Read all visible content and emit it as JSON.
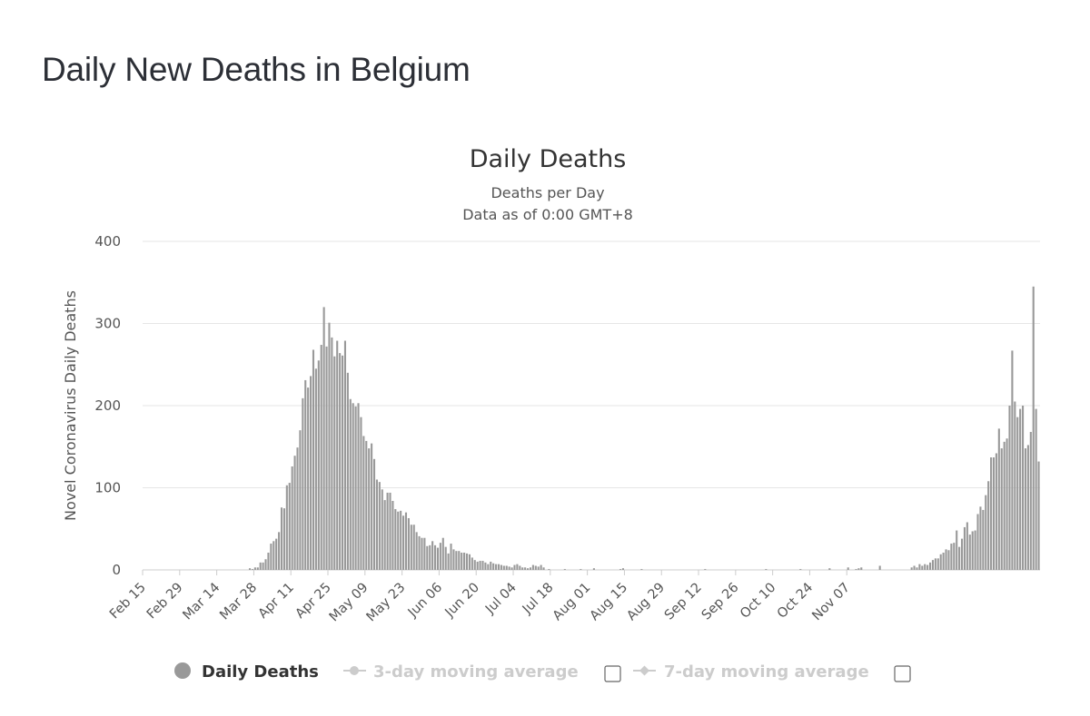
{
  "page": {
    "heading": "Daily New Deaths in Belgium"
  },
  "chart_data": {
    "type": "bar",
    "title": "Daily Deaths",
    "subtitle": [
      "Deaths per Day",
      "Data as of 0:00 GMT+8"
    ],
    "ylabel": "Novel Coronavirus Daily Deaths",
    "xlabel": "",
    "ylim": [
      0,
      400
    ],
    "yticks": [
      0,
      100,
      200,
      300,
      400
    ],
    "grid": true,
    "x_start": "2020-02-15",
    "tick_labels": [
      "Feb 15",
      "Feb 29",
      "Mar 14",
      "Mar 28",
      "Apr 11",
      "Apr 25",
      "May 09",
      "May 23",
      "Jun 06",
      "Jun 20",
      "Jul 04",
      "Jul 18",
      "Aug 01",
      "Aug 15",
      "Aug 29",
      "Sep 12",
      "Sep 26",
      "Oct 10",
      "Oct 24",
      "Nov 07"
    ],
    "series": [
      {
        "name": "Daily Deaths",
        "color": "#999999",
        "values": [
          0,
          0,
          0,
          0,
          0,
          0,
          0,
          0,
          0,
          0,
          0,
          0,
          0,
          0,
          0,
          0,
          0,
          0,
          0,
          0,
          0,
          0,
          0,
          0,
          0,
          0,
          0,
          0,
          0,
          0,
          0,
          0,
          0,
          0,
          0,
          0,
          0,
          0,
          0,
          0,
          2,
          1,
          3,
          3,
          9,
          9,
          13,
          21,
          32,
          35,
          38,
          46,
          76,
          75,
          103,
          106,
          126,
          139,
          149,
          170,
          209,
          231,
          222,
          236,
          268,
          245,
          255,
          274,
          320,
          272,
          301,
          283,
          260,
          279,
          264,
          261,
          279,
          240,
          208,
          203,
          199,
          203,
          186,
          163,
          157,
          148,
          154,
          135,
          110,
          107,
          98,
          85,
          94,
          94,
          84,
          74,
          71,
          72,
          66,
          70,
          63,
          55,
          55,
          46,
          41,
          39,
          39,
          29,
          30,
          35,
          30,
          27,
          33,
          39,
          28,
          20,
          32,
          25,
          23,
          23,
          21,
          21,
          20,
          19,
          15,
          12,
          10,
          11,
          11,
          9,
          7,
          10,
          8,
          7,
          7,
          6,
          5,
          5,
          4,
          3,
          6,
          7,
          5,
          3,
          3,
          2,
          3,
          6,
          5,
          4,
          6,
          3,
          0,
          1,
          0,
          0,
          0,
          0,
          0,
          1,
          0,
          0,
          0,
          0,
          0,
          1,
          0,
          0,
          0,
          0,
          2,
          0,
          0,
          0,
          0,
          0,
          0,
          0,
          0,
          0,
          1,
          2,
          0,
          0,
          0,
          0,
          0,
          0,
          1,
          0,
          0,
          0,
          0,
          0,
          0,
          0,
          0,
          0,
          0,
          0,
          0,
          0,
          0,
          0,
          0,
          0,
          0,
          0,
          0,
          0,
          0,
          0,
          1,
          0,
          0,
          0,
          0,
          0,
          0,
          0,
          0,
          0,
          0,
          0,
          0,
          0,
          0,
          0,
          0,
          0,
          0,
          0,
          0,
          0,
          0,
          1,
          0,
          0,
          0,
          0,
          0,
          0,
          0,
          0,
          0,
          0,
          0,
          0,
          1,
          0,
          0,
          0,
          0,
          0,
          0,
          0,
          0,
          0,
          0,
          2,
          0,
          0,
          0,
          0,
          0,
          0,
          3,
          0,
          0,
          1,
          2,
          3,
          0,
          0,
          0,
          0,
          0,
          0,
          5,
          0,
          0,
          0,
          0,
          0,
          0,
          0,
          0,
          0,
          0,
          0,
          3,
          5,
          3,
          7,
          5,
          7,
          6,
          9,
          12,
          14,
          14,
          19,
          21,
          25,
          24,
          32,
          33,
          48,
          28,
          38,
          52,
          58,
          43,
          47,
          48,
          68,
          77,
          73,
          91,
          108,
          137,
          137,
          142,
          172,
          148,
          156,
          160,
          200,
          267,
          205,
          186,
          196,
          200,
          148,
          152,
          168,
          345,
          196,
          132
        ]
      },
      {
        "name": "3-day moving average",
        "color": "#cccccc",
        "visible": false
      },
      {
        "name": "7-day moving average",
        "color": "#cccccc",
        "visible": false
      }
    ],
    "legend": "bottom"
  }
}
